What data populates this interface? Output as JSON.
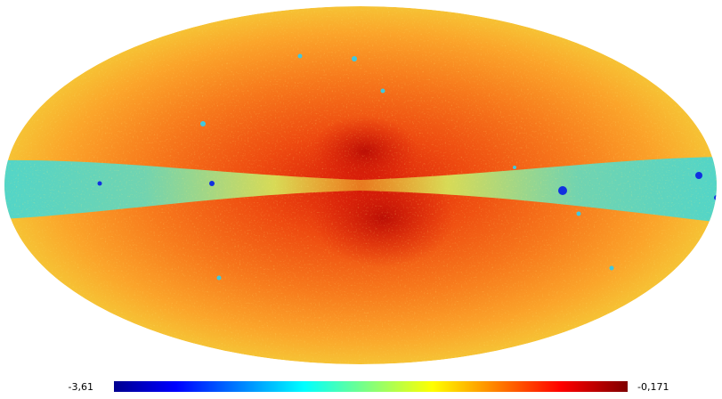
{
  "colorbar": {
    "min": {
      "value": -3.61,
      "label": "-3,61"
    },
    "max": {
      "value": -0.171,
      "label": "-0,171"
    }
  }
}
